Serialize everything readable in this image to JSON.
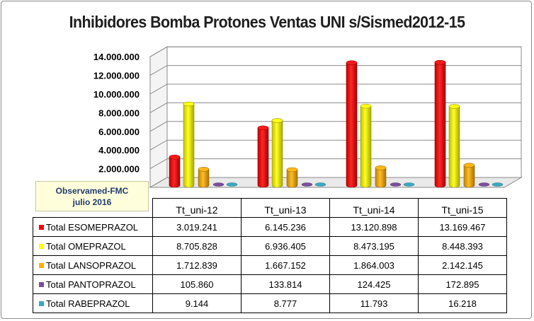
{
  "chart_data": {
    "type": "bar",
    "title": "Inhibidores Bomba Protones Ventas UNI s/Sismed2012-15",
    "categories": [
      "Tt_uni-12",
      "Tt_uni-13",
      "Tt_uni-14",
      "Tt_uni-15"
    ],
    "series": [
      {
        "name": "Total ESOMEPRAZOL",
        "color": "#ff0000",
        "values": [
          3019241,
          6145236,
          13120898,
          13169467
        ],
        "labels": [
          "3.019.241",
          "6.145.236",
          "13.120.898",
          "13.169.467"
        ]
      },
      {
        "name": "Total OMEPRAZOL",
        "color": "#ffff00",
        "values": [
          8705828,
          6936405,
          8473195,
          8448393
        ],
        "labels": [
          "8.705.828",
          "6.936.405",
          "8.473.195",
          "8.448.393"
        ]
      },
      {
        "name": "Total LANSOPRAZOL",
        "color": "#ffb000",
        "values": [
          1712839,
          1667152,
          1864003,
          2142145
        ],
        "labels": [
          "1.712.839",
          "1.667.152",
          "1.864.003",
          "2.142.145"
        ]
      },
      {
        "name": "Total PANTOPRAZOL",
        "color": "#7a4f9a",
        "values": [
          105860,
          133814,
          124425,
          172895
        ],
        "labels": [
          "105.860",
          "133.814",
          "124.425",
          "172.895"
        ]
      },
      {
        "name": "Total RABEPRAZOL",
        "color": "#3aa8c1",
        "values": [
          9144,
          8777,
          11793,
          16218
        ],
        "labels": [
          "9.144",
          "8.777",
          "11.793",
          "16.218"
        ]
      }
    ],
    "ylim": [
      0,
      14000000
    ],
    "yticks": [
      2000000,
      4000000,
      6000000,
      8000000,
      10000000,
      12000000,
      14000000
    ],
    "ytick_labels": [
      "2.000.000",
      "4.000.000",
      "6.000.000",
      "8.000.000",
      "10.000.000",
      "12.000.000",
      "14.000.000"
    ],
    "grid": true,
    "legend": "data-table-below",
    "annotation_lines": [
      "Observamed-FMC",
      "julio 2016"
    ]
  }
}
